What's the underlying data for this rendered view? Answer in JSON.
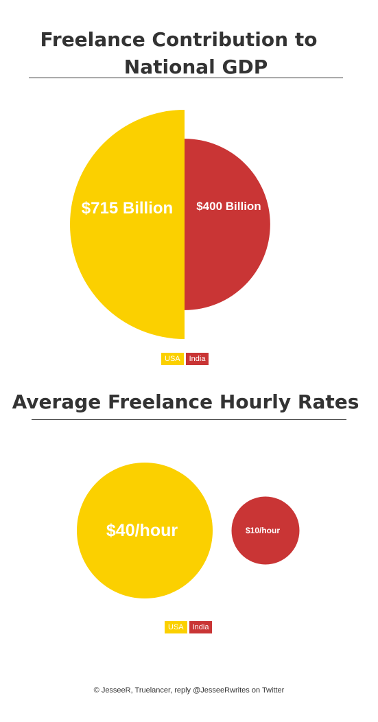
{
  "colors": {
    "usa": "#FBD000",
    "india": "#C93535",
    "text": "#333333"
  },
  "charts": [
    {
      "title_line1": "Freelance Contribution to",
      "title_line2": "National GDP",
      "legend": [
        "USA",
        "India"
      ]
    },
    {
      "title": "Average Freelance Hourly Rates",
      "legend": [
        "USA",
        "India"
      ]
    }
  ],
  "chart_data": [
    {
      "type": "pie",
      "title": "Freelance Contribution to National GDP",
      "categories": [
        "USA",
        "India"
      ],
      "values": [
        715,
        400
      ],
      "unit": "Billion USD",
      "labels": [
        "$715 Billion",
        "$400 Billion"
      ]
    },
    {
      "type": "scatter",
      "title": "Average Freelance Hourly Rates",
      "categories": [
        "USA",
        "India"
      ],
      "values": [
        40,
        10
      ],
      "unit": "USD per hour",
      "labels": [
        "$40/hour",
        "$10/hour"
      ]
    }
  ],
  "footer": "© JesseeR, Truelancer, reply @JesseeRwrites on Twitter"
}
